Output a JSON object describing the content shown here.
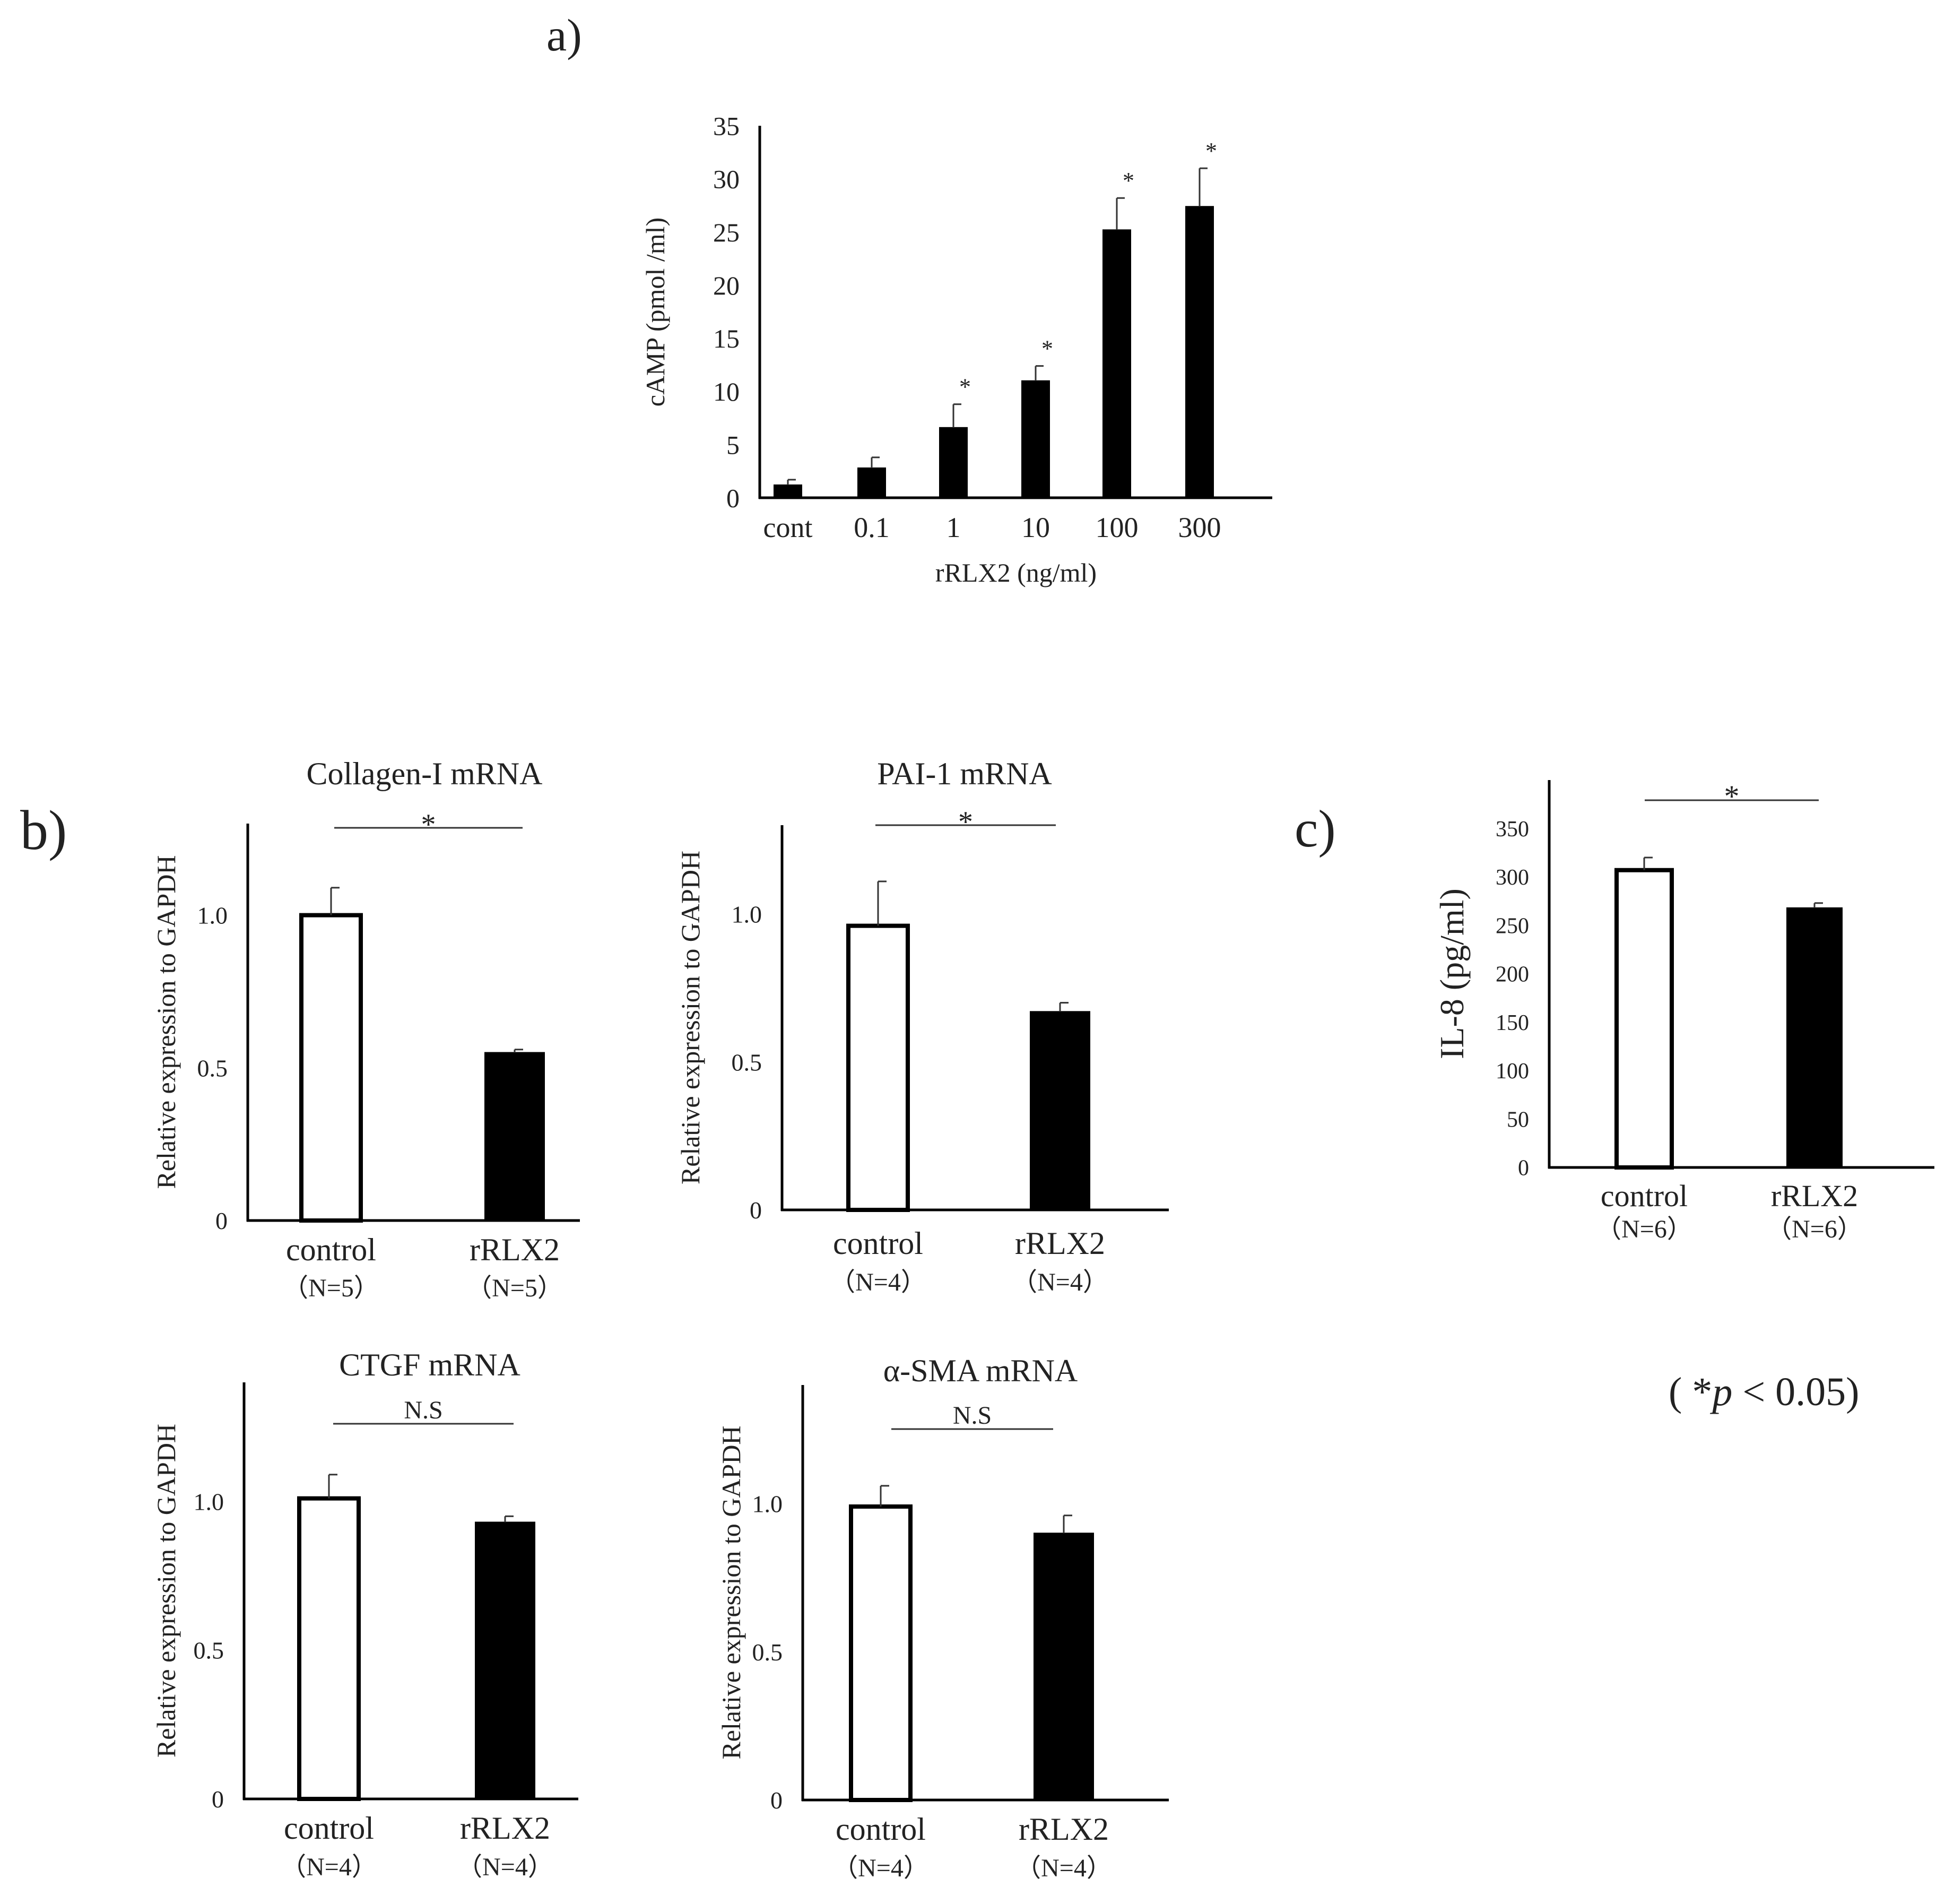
{
  "figure": {
    "panel_a_label": "a)",
    "panel_b_label": "b)",
    "panel_c_label": "c)",
    "significance_note_open": "( ",
    "significance_note_star": "*",
    "significance_note_p": "p",
    "significance_note_rest": " < 0.05)"
  },
  "colors": {
    "bar_control": "#ffffff",
    "bar_treated": "#000000",
    "axis": "#000000"
  },
  "chart_data": [
    {
      "id": "camp",
      "type": "bar",
      "panel": "a",
      "title": "",
      "xlabel": "rRLX2 (ng/ml)",
      "ylabel": "cAMP (pmol /ml)",
      "ylim": [
        0,
        35
      ],
      "yticks": [
        "0",
        "5",
        "10",
        "15",
        "20",
        "25",
        "30",
        "35"
      ],
      "categories": [
        "cont",
        "0.1",
        "1",
        "10",
        "100",
        "300"
      ],
      "values": [
        1.2,
        2.8,
        6.6,
        11.0,
        25.2,
        27.4
      ],
      "errors": [
        0.5,
        1.0,
        2.2,
        1.4,
        3.0,
        3.6
      ],
      "fills": [
        "black",
        "black",
        "black",
        "black",
        "black",
        "black"
      ],
      "bar_annotations": [
        "",
        "",
        "*",
        "*",
        "*",
        "*"
      ],
      "grid": false
    },
    {
      "id": "col1",
      "type": "bar",
      "panel": "b",
      "title": "Collagen-I mRNA",
      "ylabel": "Relative expression to GAPDH",
      "ylim": [
        0,
        1.3
      ],
      "yticks": [
        "0",
        "0.5",
        "1.0"
      ],
      "categories": [
        "control",
        "rRLX2"
      ],
      "n_labels": [
        "（N=5）",
        "（N=5）"
      ],
      "values": [
        1.0,
        0.55
      ],
      "errors": [
        0.09,
        0.01
      ],
      "fills": [
        "white",
        "black"
      ],
      "comparison": "*",
      "grid": false
    },
    {
      "id": "pai",
      "type": "bar",
      "panel": "b",
      "title": "PAI-1 mRNA",
      "ylabel": "Relative expression to GAPDH",
      "ylim": [
        0,
        1.3
      ],
      "yticks": [
        "0",
        "0.5",
        "1.0"
      ],
      "categories": [
        "control",
        "rRLX2"
      ],
      "n_labels": [
        "（N=4）",
        "（N=4）"
      ],
      "values": [
        0.96,
        0.67
      ],
      "errors": [
        0.15,
        0.03
      ],
      "fills": [
        "white",
        "black"
      ],
      "comparison": "*",
      "grid": false
    },
    {
      "id": "il8",
      "type": "bar",
      "panel": "c",
      "title": "",
      "ylabel": "IL-8 (pg/ml)",
      "ylim": [
        0,
        400
      ],
      "yticks": [
        "0",
        "50",
        "100",
        "150",
        "200",
        "250",
        "300",
        "350"
      ],
      "categories": [
        "control",
        "rRLX2"
      ],
      "n_labels": [
        "（N=6）",
        "（N=6）"
      ],
      "values": [
        307,
        268
      ],
      "errors": [
        13,
        5
      ],
      "fills": [
        "white",
        "black"
      ],
      "comparison": "*",
      "grid": false
    },
    {
      "id": "ctgf",
      "type": "bar",
      "panel": "b",
      "title": "CTGF mRNA",
      "ylabel": "Relative expression to GAPDH",
      "ylim": [
        0,
        1.4
      ],
      "yticks": [
        "0",
        "0.5",
        "1.0"
      ],
      "categories": [
        "control",
        "rRLX2"
      ],
      "n_labels": [
        "（N=4）",
        "（N=4）"
      ],
      "values": [
        1.01,
        0.93
      ],
      "errors": [
        0.08,
        0.02
      ],
      "fills": [
        "white",
        "black"
      ],
      "comparison": "N.S",
      "grid": false
    },
    {
      "id": "sma",
      "type": "bar",
      "panel": "b",
      "title": "α-SMA mRNA",
      "ylabel": "Relative expression to GAPDH",
      "ylim": [
        0,
        1.4
      ],
      "yticks": [
        "0",
        "0.5",
        "1.0"
      ],
      "categories": [
        "control",
        "rRLX2"
      ],
      "n_labels": [
        "（N=4）",
        "（N=4）"
      ],
      "values": [
        0.99,
        0.9
      ],
      "errors": [
        0.07,
        0.06
      ],
      "fills": [
        "white",
        "black"
      ],
      "comparison": "N.S",
      "grid": false
    }
  ]
}
